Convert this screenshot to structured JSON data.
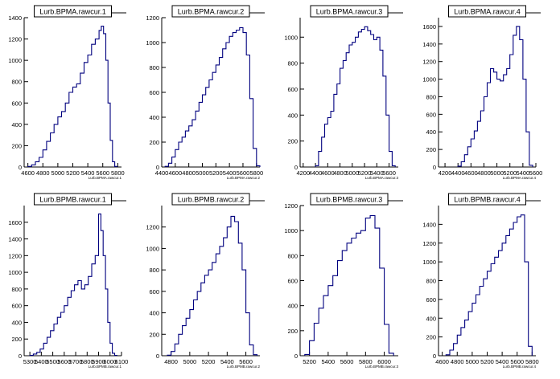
{
  "line_color": "#00007f",
  "chart_data": [
    {
      "type": "histogram",
      "title": "Lurb.BPMA.rawcur.1",
      "xlabel": "Lurb.BPMA.rawcur.1",
      "xlim": [
        4550,
        5850
      ],
      "ylim": [
        0,
        1400
      ],
      "xticks": [
        4600,
        4800,
        5000,
        5200,
        5400,
        5600,
        5800
      ],
      "yticks": [
        0,
        200,
        400,
        600,
        800,
        1000,
        1200,
        1400
      ],
      "x": [
        4600,
        4650,
        4700,
        4750,
        4800,
        4850,
        4900,
        4950,
        5000,
        5050,
        5100,
        5150,
        5200,
        5250,
        5300,
        5350,
        5400,
        5450,
        5500,
        5550,
        5580,
        5610,
        5640,
        5670,
        5700,
        5730,
        5760
      ],
      "values": [
        5,
        20,
        50,
        90,
        160,
        240,
        320,
        400,
        470,
        520,
        600,
        700,
        750,
        780,
        880,
        980,
        1050,
        1150,
        1200,
        1280,
        1320,
        1250,
        1000,
        600,
        250,
        50,
        5
      ]
    },
    {
      "type": "histogram",
      "title": "Lurb.BPMA.rawcur.2",
      "xlabel": "Lurb.BPMA.rawcur.2",
      "xlim": [
        4400,
        5850
      ],
      "ylim": [
        0,
        1200
      ],
      "xticks": [
        4400,
        4600,
        4800,
        5000,
        5200,
        5400,
        5600,
        5800
      ],
      "yticks": [
        0,
        200,
        400,
        600,
        800,
        1000,
        1200
      ],
      "x": [
        4450,
        4500,
        4550,
        4600,
        4650,
        4700,
        4750,
        4800,
        4850,
        4900,
        4950,
        5000,
        5050,
        5100,
        5150,
        5200,
        5250,
        5300,
        5350,
        5400,
        5450,
        5500,
        5550,
        5600,
        5650,
        5700,
        5750,
        5800
      ],
      "values": [
        5,
        30,
        80,
        140,
        200,
        240,
        290,
        330,
        380,
        450,
        520,
        580,
        640,
        700,
        760,
        820,
        880,
        950,
        1000,
        1050,
        1080,
        1100,
        1120,
        1080,
        900,
        550,
        150,
        10
      ]
    },
    {
      "type": "histogram",
      "title": "Lurb.BPMA.rawcur.3",
      "xlabel": "Lurb.BPMA.rawcur.3",
      "xlim": [
        4150,
        5750
      ],
      "ylim": [
        0,
        1150
      ],
      "xticks": [
        4200,
        4400,
        4600,
        4800,
        5000,
        5200,
        5400,
        5600
      ],
      "yticks": [
        0,
        200,
        400,
        600,
        800,
        1000
      ],
      "x": [
        4400,
        4450,
        4500,
        4550,
        4600,
        4650,
        4700,
        4750,
        4800,
        4850,
        4900,
        4950,
        5000,
        5050,
        5100,
        5150,
        5200,
        5250,
        5300,
        5350,
        5400,
        5450,
        5500,
        5550,
        5600,
        5650
      ],
      "values": [
        10,
        120,
        230,
        330,
        380,
        430,
        560,
        640,
        760,
        820,
        880,
        940,
        960,
        1000,
        1040,
        1060,
        1080,
        1050,
        1020,
        980,
        1000,
        900,
        700,
        400,
        120,
        10
      ]
    },
    {
      "type": "histogram",
      "title": "Lurb.BPMA.rawcur.4",
      "xlabel": "Lurb.BPMA.rawcur.4",
      "xlim": [
        4100,
        5600
      ],
      "ylim": [
        0,
        1700
      ],
      "xticks": [
        4200,
        4400,
        4600,
        4800,
        5000,
        5200,
        5400,
        5600
      ],
      "yticks": [
        0,
        200,
        400,
        600,
        800,
        1000,
        1200,
        1400,
        1600
      ],
      "x": [
        4400,
        4450,
        4500,
        4550,
        4600,
        4650,
        4700,
        4750,
        4800,
        4850,
        4900,
        4950,
        5000,
        5050,
        5100,
        5150,
        5200,
        5250,
        5300,
        5350,
        5400,
        5450,
        5500
      ],
      "values": [
        10,
        60,
        140,
        230,
        320,
        410,
        520,
        640,
        800,
        960,
        1120,
        1080,
        1000,
        980,
        1050,
        1120,
        1280,
        1500,
        1600,
        1450,
        1000,
        400,
        20
      ]
    },
    {
      "type": "histogram",
      "title": "Lurb.BPMB.rawcur.1",
      "xlabel": "Lurb.BPMB.rawcur.1",
      "xlim": [
        5250,
        6100
      ],
      "ylim": [
        0,
        1800
      ],
      "xticks": [
        5300,
        5400,
        5500,
        5600,
        5700,
        5800,
        5900,
        6000,
        6100
      ],
      "ticklabels": [
        "5300",
        "5400",
        "5500",
        "5600",
        "5700",
        "5800",
        "5900",
        "6000",
        "6100"
      ],
      "yticks": [
        0,
        200,
        400,
        600,
        800,
        1000,
        1200,
        1400,
        1600
      ],
      "x": [
        5300,
        5330,
        5360,
        5390,
        5420,
        5450,
        5480,
        5510,
        5540,
        5570,
        5600,
        5630,
        5660,
        5690,
        5720,
        5750,
        5780,
        5810,
        5840,
        5870,
        5900,
        5920,
        5940,
        5960,
        5980,
        6000,
        6020,
        6040
      ],
      "values": [
        5,
        20,
        40,
        80,
        150,
        220,
        300,
        380,
        460,
        520,
        600,
        700,
        780,
        850,
        900,
        800,
        850,
        950,
        1100,
        1200,
        1700,
        1500,
        1200,
        800,
        400,
        150,
        30,
        5
      ]
    },
    {
      "type": "histogram",
      "title": "Lurb.BPMB.rawcur.2",
      "xlabel": "Lurb.BPMB.rawcur.2",
      "xlim": [
        4700,
        5750
      ],
      "ylim": [
        0,
        1400
      ],
      "xticks": [
        4800,
        5000,
        5200,
        5400,
        5600
      ],
      "yticks": [
        0,
        200,
        400,
        600,
        800,
        1000,
        1200
      ],
      "x": [
        4760,
        4800,
        4840,
        4880,
        4920,
        4960,
        5000,
        5040,
        5080,
        5120,
        5160,
        5200,
        5240,
        5280,
        5320,
        5360,
        5400,
        5440,
        5480,
        5520,
        5560,
        5600,
        5640,
        5680
      ],
      "values": [
        5,
        40,
        110,
        200,
        280,
        350,
        430,
        520,
        600,
        680,
        750,
        800,
        870,
        950,
        1020,
        1100,
        1200,
        1300,
        1250,
        1050,
        800,
        400,
        100,
        10
      ]
    },
    {
      "type": "histogram",
      "title": "Lurb.BPMB.rawcur.3",
      "xlabel": "Lurb.BPMB.rawcur.3",
      "xlim": [
        5100,
        6150
      ],
      "ylim": [
        0,
        1200
      ],
      "xticks": [
        5200,
        5400,
        5600,
        5800,
        6000
      ],
      "yticks": [
        0,
        200,
        400,
        600,
        800,
        1000,
        1200
      ],
      "x": [
        5150,
        5200,
        5250,
        5300,
        5350,
        5400,
        5450,
        5500,
        5550,
        5600,
        5650,
        5700,
        5750,
        5800,
        5850,
        5900,
        5950,
        6000,
        6050
      ],
      "values": [
        10,
        120,
        260,
        380,
        480,
        560,
        640,
        760,
        840,
        900,
        940,
        980,
        1000,
        1100,
        1120,
        1020,
        700,
        250,
        20
      ]
    },
    {
      "type": "histogram",
      "title": "Lurb.BPMB.rawcur.4",
      "xlabel": "Lurb.BPMB.rawcur.4",
      "xlim": [
        4550,
        5850
      ],
      "ylim": [
        0,
        1600
      ],
      "xticks": [
        4600,
        4800,
        5000,
        5200,
        5400,
        5600,
        5800
      ],
      "yticks": [
        0,
        200,
        400,
        600,
        800,
        1000,
        1200,
        1400
      ],
      "x": [
        4650,
        4700,
        4750,
        4800,
        4850,
        4900,
        4950,
        5000,
        5050,
        5100,
        5150,
        5200,
        5250,
        5300,
        5350,
        5400,
        5450,
        5500,
        5550,
        5600,
        5650,
        5700,
        5750
      ],
      "values": [
        10,
        60,
        130,
        220,
        300,
        380,
        470,
        560,
        650,
        740,
        820,
        900,
        980,
        1050,
        1120,
        1200,
        1280,
        1350,
        1420,
        1480,
        1500,
        1000,
        100
      ]
    }
  ]
}
